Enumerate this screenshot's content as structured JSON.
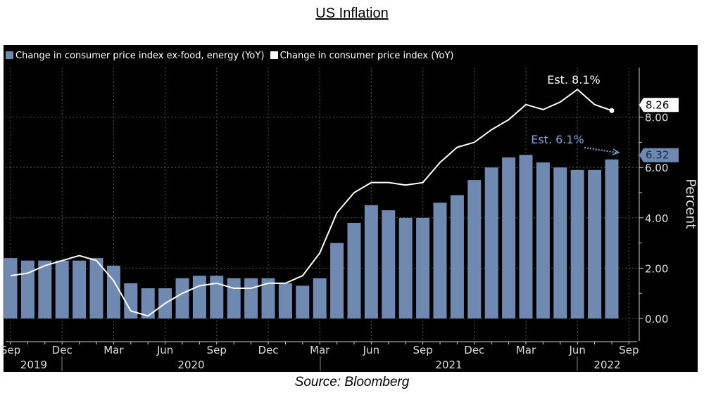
{
  "title": "US Inflation",
  "source": "Source: Bloomberg",
  "chart_data": {
    "type": "bar+line",
    "title": "US Inflation",
    "ylabel": "Percent",
    "ylim": [
      -1.5,
      9.7
    ],
    "yticks": [
      "0.00",
      "2.00",
      "4.00",
      "6.00",
      "8.00"
    ],
    "ytick_values": [
      0,
      2,
      4,
      6,
      8
    ],
    "grid": true,
    "legend_position": "top-left",
    "x_start": "2019-09",
    "x_tick_labels": [
      "Sep",
      "Dec",
      "Mar",
      "Jun",
      "Sep",
      "Dec",
      "Mar",
      "Jun",
      "Sep",
      "Dec",
      "Mar",
      "Jun",
      "Sep"
    ],
    "x_tick_months": [
      "2019-09",
      "2019-12",
      "2020-03",
      "2020-06",
      "2020-09",
      "2020-12",
      "2021-03",
      "2021-06",
      "2021-09",
      "2021-12",
      "2022-03",
      "2022-06",
      "2022-09"
    ],
    "year_labels": [
      "2019",
      "2020",
      "2021",
      "2022"
    ],
    "categories": [
      "2019-09",
      "2019-10",
      "2019-11",
      "2019-12",
      "2020-01",
      "2020-02",
      "2020-03",
      "2020-04",
      "2020-05",
      "2020-06",
      "2020-07",
      "2020-08",
      "2020-09",
      "2020-10",
      "2020-11",
      "2020-12",
      "2021-01",
      "2021-02",
      "2021-03",
      "2021-04",
      "2021-05",
      "2021-06",
      "2021-07",
      "2021-08",
      "2021-09",
      "2021-10",
      "2021-11",
      "2021-12",
      "2022-01",
      "2022-02",
      "2022-03",
      "2022-04",
      "2022-05",
      "2022-06",
      "2022-07",
      "2022-08"
    ],
    "series": [
      {
        "name": "Change in consumer price index ex-food, energy (YoY)",
        "type": "bar",
        "color": "#7089b0",
        "values": [
          2.4,
          2.3,
          2.3,
          2.3,
          2.3,
          2.4,
          2.1,
          1.4,
          1.2,
          1.2,
          1.6,
          1.7,
          1.7,
          1.6,
          1.6,
          1.6,
          1.4,
          1.3,
          1.6,
          3.0,
          3.8,
          4.5,
          4.3,
          4.0,
          4.0,
          4.6,
          4.9,
          5.5,
          6.0,
          6.4,
          6.5,
          6.2,
          6.0,
          5.9,
          5.9,
          6.32
        ],
        "last_label": "6.32"
      },
      {
        "name": "Change in consumer price index (YoY)",
        "type": "line",
        "color": "#ffffff",
        "values": [
          1.7,
          1.8,
          2.1,
          2.3,
          2.5,
          2.3,
          1.5,
          0.3,
          0.1,
          0.6,
          1.0,
          1.3,
          1.4,
          1.2,
          1.2,
          1.4,
          1.4,
          1.7,
          2.6,
          4.2,
          5.0,
          5.4,
          5.4,
          5.3,
          5.4,
          6.2,
          6.8,
          7.0,
          7.5,
          7.9,
          8.5,
          8.3,
          8.6,
          9.1,
          8.5,
          8.26
        ],
        "last_label": "8.26"
      }
    ],
    "annotations": [
      {
        "text": "Est. 8.1%",
        "color": "#ffffff"
      },
      {
        "text": "Est. 6.1%",
        "color": "#7fa6d9"
      }
    ]
  }
}
